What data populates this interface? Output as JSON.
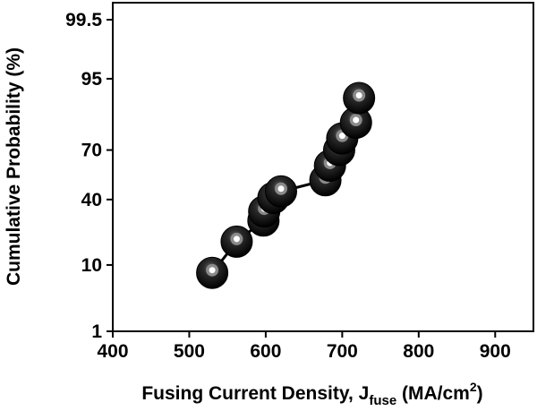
{
  "chart_data": {
    "type": "scatter",
    "title": "",
    "xlabel": "Fusing Current Density, J",
    "xlabel_subscript": "fuse",
    "xlabel_units": " (MA/cm",
    "xlabel_units_sup": "2",
    "xlabel_units_close": ")",
    "ylabel": "Cumulative Probability (%)",
    "xlim": [
      400,
      950
    ],
    "ylim": [
      1,
      99.5
    ],
    "y_scale": "probability",
    "x_ticks": [
      {
        "value": 400,
        "label": "400"
      },
      {
        "value": 500,
        "label": "500"
      },
      {
        "value": 600,
        "label": "600"
      },
      {
        "value": 700,
        "label": "700"
      },
      {
        "value": 800,
        "label": "800"
      },
      {
        "value": 900,
        "label": "900"
      }
    ],
    "y_ticks": [
      {
        "value": 1,
        "label": "1"
      },
      {
        "value": 10,
        "label": "10"
      },
      {
        "value": 40,
        "label": "40"
      },
      {
        "value": 70,
        "label": "70"
      },
      {
        "value": 95,
        "label": "95"
      },
      {
        "value": 99.5,
        "label": "99.5"
      }
    ],
    "grid": false,
    "marker_color": "#000000",
    "highlight_color": "#ffffff",
    "points": [
      {
        "x": 530,
        "y": 8
      },
      {
        "x": 562,
        "y": 18
      },
      {
        "x": 597,
        "y": 28
      },
      {
        "x": 598,
        "y": 33
      },
      {
        "x": 610,
        "y": 41
      },
      {
        "x": 620,
        "y": 45
      },
      {
        "x": 678,
        "y": 52
      },
      {
        "x": 684,
        "y": 61
      },
      {
        "x": 696,
        "y": 70
      },
      {
        "x": 700,
        "y": 76
      },
      {
        "x": 718,
        "y": 83
      },
      {
        "x": 722,
        "y": 91
      }
    ]
  }
}
